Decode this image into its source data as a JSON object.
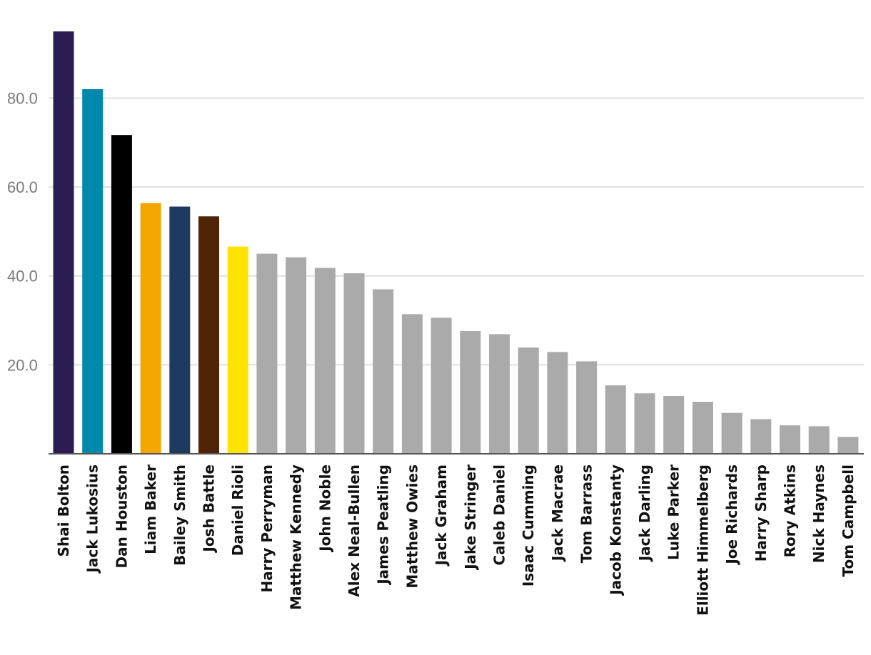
{
  "chart_data": {
    "type": "bar",
    "title": "",
    "xlabel": "",
    "ylabel": "",
    "ylim": [
      0,
      95.5
    ],
    "yticks": [
      20,
      40,
      60,
      80
    ],
    "ytick_labels": [
      "20.0",
      "40.0",
      "60.0",
      "80.0"
    ],
    "grid": true,
    "categories": [
      "Shai Bolton",
      "Jack Lukosius",
      "Dan Houston",
      "Liam Baker",
      "Bailey Smith",
      "Josh Battle",
      "Daniel Rioli",
      "Harry Perryman",
      "Matthew Kennedy",
      "John Noble",
      "Alex Neal-Bullen",
      "James Peatling",
      "Matthew Owies",
      "Jack Graham",
      "Jake Stringer",
      "Caleb Daniel",
      "Isaac Cumming",
      "Jack Macrae",
      "Tom Barrass",
      "Jacob Konstanty",
      "Jack Darling",
      "Luke Parker",
      "Elliott Himmelberg",
      "Joe Richards",
      "Harry Sharp",
      "Rory Atkins",
      "Nick Haynes",
      "Tom Campbell"
    ],
    "values": [
      95.0,
      82.0,
      71.7,
      56.4,
      55.6,
      53.4,
      46.6,
      45.0,
      44.2,
      41.8,
      40.6,
      37.0,
      31.4,
      30.6,
      27.6,
      26.9,
      23.9,
      22.9,
      20.8,
      15.4,
      13.6,
      13.0,
      11.7,
      9.2,
      7.8,
      6.4,
      6.2,
      3.8
    ],
    "colors": [
      "#2b1d54",
      "#0088ad",
      "#000000",
      "#f3a600",
      "#1e3b5f",
      "#4f2306",
      "#ffe400",
      "#aaaaaa",
      "#aaaaaa",
      "#aaaaaa",
      "#aaaaaa",
      "#aaaaaa",
      "#aaaaaa",
      "#aaaaaa",
      "#aaaaaa",
      "#aaaaaa",
      "#aaaaaa",
      "#aaaaaa",
      "#aaaaaa",
      "#aaaaaa",
      "#aaaaaa",
      "#aaaaaa",
      "#aaaaaa",
      "#aaaaaa",
      "#aaaaaa",
      "#aaaaaa",
      "#aaaaaa",
      "#aaaaaa"
    ]
  }
}
